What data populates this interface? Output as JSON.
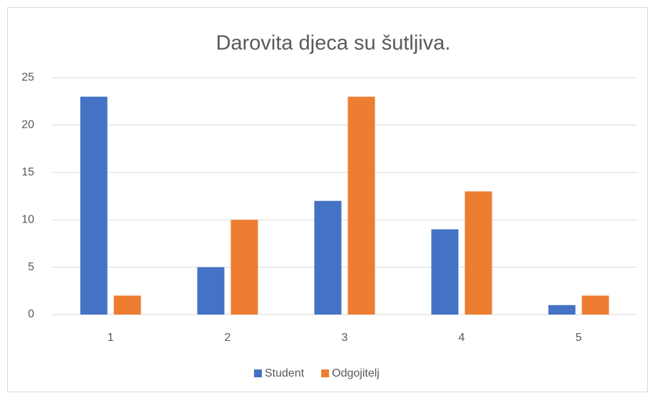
{
  "chart_data": {
    "type": "bar",
    "title": "Darovita djeca su šutljiva.",
    "categories": [
      "1",
      "2",
      "3",
      "4",
      "5"
    ],
    "series": [
      {
        "name": "Student",
        "color": "#4472c4",
        "values": [
          23,
          5,
          12,
          9,
          1
        ]
      },
      {
        "name": "Odgojitelj",
        "color": "#ed7d31",
        "values": [
          2,
          10,
          23,
          13,
          2
        ]
      }
    ],
    "ylim": [
      0,
      25
    ],
    "yticks": [
      0,
      5,
      10,
      15,
      20,
      25
    ],
    "grid": true,
    "legend": "bottom"
  }
}
